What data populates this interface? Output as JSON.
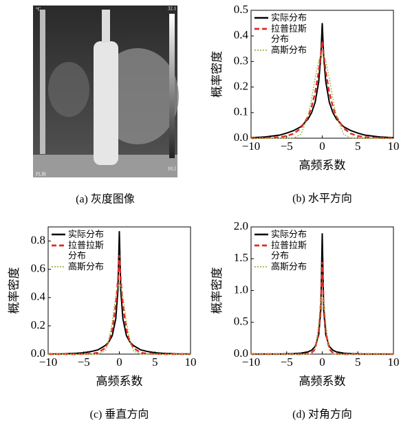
{
  "image": {
    "caption": "(a) 灰度图像",
    "unit": "°C",
    "max_label": "32.1",
    "min_label": "10.2",
    "brand": "FLIR"
  },
  "chart_data": [
    {
      "type": "line",
      "caption": "(b) 水平方向",
      "xlabel": "高频系数",
      "ylabel": "概率密度",
      "legend": "upper left",
      "x": [
        -10,
        -8,
        -6,
        -5,
        -4,
        -3,
        -2,
        -1.5,
        -1,
        -0.5,
        -0.2,
        0,
        0.2,
        0.5,
        1,
        1.5,
        2,
        3,
        4,
        5,
        6,
        8,
        10
      ],
      "xlim": [
        -10,
        10
      ],
      "xticks": [
        -10,
        -5,
        0,
        5,
        10
      ],
      "ylim": [
        0,
        0.5
      ],
      "yticks": [
        {
          "value": 0,
          "label": "0.0"
        },
        {
          "value": 0.1,
          "label": "0.1"
        },
        {
          "value": 0.2,
          "label": "0.2"
        },
        {
          "value": 0.3,
          "label": "0.3"
        },
        {
          "value": 0.4,
          "label": "0.4"
        },
        {
          "value": 0.5,
          "label": "0.5"
        }
      ],
      "series": [
        {
          "name": "实际分布",
          "color": "#000000",
          "style": "solid",
          "values": [
            0.002,
            0.005,
            0.012,
            0.02,
            0.03,
            0.045,
            0.075,
            0.1,
            0.14,
            0.22,
            0.32,
            0.45,
            0.32,
            0.22,
            0.14,
            0.1,
            0.075,
            0.045,
            0.03,
            0.02,
            0.012,
            0.005,
            0.002
          ]
        },
        {
          "name": "拉普拉斯分布",
          "color": "#e3261f",
          "style": "dashed",
          "values": [
            0,
            0.001,
            0.004,
            0.009,
            0.018,
            0.039,
            0.084,
            0.122,
            0.178,
            0.26,
            0.327,
            0.38,
            0.327,
            0.26,
            0.178,
            0.122,
            0.084,
            0.039,
            0.018,
            0.009,
            0.004,
            0.001,
            0
          ]
        },
        {
          "name": "高斯分布",
          "color": "#9fb43a",
          "style": "dotted",
          "values": [
            0,
            0,
            0,
            0,
            0.001,
            0.015,
            0.084,
            0.153,
            0.235,
            0.303,
            0.325,
            0.33,
            0.325,
            0.303,
            0.235,
            0.153,
            0.084,
            0.015,
            0.001,
            0,
            0,
            0,
            0
          ]
        }
      ]
    },
    {
      "type": "line",
      "caption": "(c) 垂直方向",
      "xlabel": "高频系数",
      "ylabel": "概率密度",
      "legend": "upper left",
      "x": [
        -10,
        -8,
        -6,
        -5,
        -4,
        -3,
        -2,
        -1.5,
        -1,
        -0.5,
        -0.2,
        0,
        0.2,
        0.5,
        1,
        1.5,
        2,
        3,
        4,
        5,
        6,
        8,
        10
      ],
      "xlim": [
        -10,
        10
      ],
      "xticks": [
        -10,
        -5,
        0,
        5,
        10
      ],
      "ylim": [
        0,
        0.9
      ],
      "yticks": [
        {
          "value": 0,
          "label": "0.0"
        },
        {
          "value": 0.2,
          "label": "0.2"
        },
        {
          "value": 0.4,
          "label": "0.4"
        },
        {
          "value": 0.6,
          "label": "0.6"
        },
        {
          "value": 0.8,
          "label": "0.8"
        }
      ],
      "series": [
        {
          "name": "实际分布",
          "color": "#000000",
          "style": "solid",
          "values": [
            0.001,
            0.002,
            0.006,
            0.01,
            0.018,
            0.03,
            0.06,
            0.085,
            0.13,
            0.25,
            0.45,
            0.87,
            0.45,
            0.25,
            0.13,
            0.085,
            0.06,
            0.03,
            0.018,
            0.01,
            0.006,
            0.002,
            0.001
          ]
        },
        {
          "name": "拉普拉斯分布",
          "color": "#e3261f",
          "style": "dashed",
          "values": [
            0,
            0,
            0,
            0.001,
            0.003,
            0.01,
            0.042,
            0.086,
            0.172,
            0.348,
            0.529,
            0.7,
            0.529,
            0.348,
            0.172,
            0.086,
            0.042,
            0.01,
            0.003,
            0.001,
            0,
            0,
            0
          ]
        },
        {
          "name": "高斯分布",
          "color": "#9fb43a",
          "style": "dotted",
          "values": [
            0,
            0,
            0,
            0,
            0,
            0.001,
            0.022,
            0.086,
            0.229,
            0.411,
            0.484,
            0.5,
            0.484,
            0.411,
            0.229,
            0.086,
            0.022,
            0.001,
            0,
            0,
            0,
            0,
            0
          ]
        }
      ]
    },
    {
      "type": "line",
      "caption": "(d) 对角方向",
      "xlabel": "高频系数",
      "ylabel": "概率密度",
      "legend": "upper left",
      "x": [
        -10,
        -8,
        -6,
        -5,
        -4,
        -3,
        -2,
        -1.5,
        -1,
        -0.5,
        -0.2,
        0,
        0.2,
        0.5,
        1,
        1.5,
        2,
        3,
        4,
        5,
        6,
        8,
        10
      ],
      "xlim": [
        -10,
        10
      ],
      "xticks": [
        -10,
        -5,
        0,
        5,
        10
      ],
      "ylim": [
        0,
        2
      ],
      "yticks": [
        {
          "value": 0,
          "label": "0.0"
        },
        {
          "value": 0.5,
          "label": "0.5"
        },
        {
          "value": 1,
          "label": "1.0"
        },
        {
          "value": 1.5,
          "label": "1.5"
        },
        {
          "value": 2,
          "label": "2.0"
        }
      ],
      "series": [
        {
          "name": "实际分布",
          "color": "#000000",
          "style": "solid",
          "values": [
            0,
            0.001,
            0.002,
            0.004,
            0.008,
            0.015,
            0.035,
            0.06,
            0.12,
            0.3,
            0.7,
            1.9,
            0.7,
            0.3,
            0.12,
            0.06,
            0.035,
            0.015,
            0.008,
            0.004,
            0.002,
            0.001,
            0
          ]
        },
        {
          "name": "拉普拉斯分布",
          "color": "#e3261f",
          "style": "dashed",
          "values": [
            0,
            0,
            0,
            0,
            0,
            0,
            0.004,
            0.019,
            0.08,
            0.34,
            0.81,
            1.45,
            0.81,
            0.34,
            0.08,
            0.019,
            0.004,
            0,
            0,
            0,
            0,
            0,
            0
          ]
        },
        {
          "name": "高斯分布",
          "color": "#9fb43a",
          "style": "dotted",
          "values": [
            0,
            0,
            0,
            0,
            0,
            0,
            0,
            0.002,
            0.056,
            0.47,
            0.85,
            0.95,
            0.85,
            0.47,
            0.056,
            0.002,
            0,
            0,
            0,
            0,
            0,
            0,
            0
          ]
        }
      ]
    }
  ]
}
